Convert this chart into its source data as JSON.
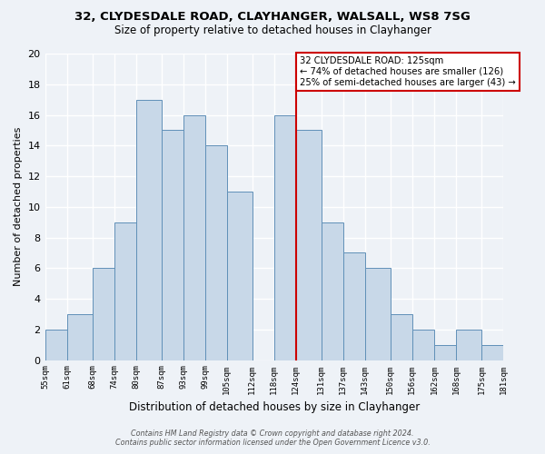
{
  "title_line1": "32, CLYDESDALE ROAD, CLAYHANGER, WALSALL, WS8 7SG",
  "title_line2": "Size of property relative to detached houses in Clayhanger",
  "xlabel": "Distribution of detached houses by size in Clayhanger",
  "ylabel": "Number of detached properties",
  "bar_edges": [
    55,
    61,
    68,
    74,
    80,
    87,
    93,
    99,
    105,
    112,
    118,
    124,
    131,
    137,
    143,
    150,
    156,
    162,
    168,
    175,
    181
  ],
  "bar_heights": [
    2,
    3,
    6,
    9,
    17,
    15,
    16,
    14,
    11,
    0,
    16,
    15,
    9,
    7,
    6,
    3,
    2,
    1,
    2,
    1
  ],
  "tick_labels": [
    "55sqm",
    "61sqm",
    "68sqm",
    "74sqm",
    "80sqm",
    "87sqm",
    "93sqm",
    "99sqm",
    "105sqm",
    "112sqm",
    "118sqm",
    "124sqm",
    "131sqm",
    "137sqm",
    "143sqm",
    "150sqm",
    "156sqm",
    "162sqm",
    "168sqm",
    "175sqm",
    "181sqm"
  ],
  "bar_color": "#c8d8e8",
  "bar_edge_color": "#6090b8",
  "vline_x": 124,
  "vline_color": "#cc0000",
  "annotation_title": "32 CLYDESDALE ROAD: 125sqm",
  "annotation_line1": "← 74% of detached houses are smaller (126)",
  "annotation_line2": "25% of semi-detached houses are larger (43) →",
  "annotation_box_color": "#ffffff",
  "annotation_box_edge": "#cc0000",
  "ylim": [
    0,
    20
  ],
  "yticks": [
    0,
    2,
    4,
    6,
    8,
    10,
    12,
    14,
    16,
    18,
    20
  ],
  "footer_line1": "Contains HM Land Registry data © Crown copyright and database right 2024.",
  "footer_line2": "Contains public sector information licensed under the Open Government Licence v3.0.",
  "background_color": "#eef2f7",
  "grid_color": "#d0d8e4"
}
